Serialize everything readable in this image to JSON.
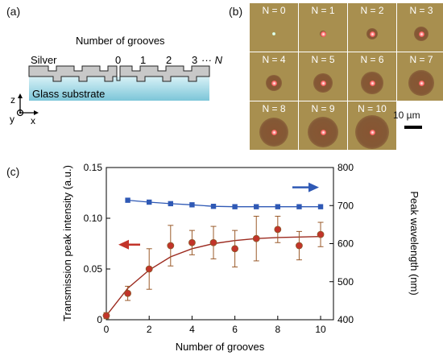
{
  "panel_a": {
    "label": "(a)",
    "title": "Number of grooves",
    "silver_label": "Silver",
    "glass_label": "Glass substrate",
    "groove_indices": [
      "0",
      "1",
      "2",
      "3"
    ],
    "ellipsis_n": "··· N",
    "axes": {
      "z": "z",
      "y": "y",
      "x": "x"
    },
    "colors": {
      "silver": "#c8c8c8",
      "glass": "#8fd0df"
    }
  },
  "panel_b": {
    "label": "(b)",
    "tiles": [
      {
        "label": "N = 0",
        "ring": 0.0
      },
      {
        "label": "N = 1",
        "ring": 0.05
      },
      {
        "label": "N = 2",
        "ring": 0.18
      },
      {
        "label": "N = 3",
        "ring": 0.28
      },
      {
        "label": "N = 4",
        "ring": 0.34
      },
      {
        "label": "N = 5",
        "ring": 0.4
      },
      {
        "label": "N = 6",
        "ring": 0.48
      },
      {
        "label": "N = 7",
        "ring": 0.58
      },
      {
        "label": "N = 8",
        "ring": 0.68
      },
      {
        "label": "N = 9",
        "ring": 0.74
      },
      {
        "label": "N = 10",
        "ring": 0.82
      }
    ],
    "scale_label": "10 µm",
    "colors": {
      "background": "#a88f4f"
    }
  },
  "panel_c": {
    "label": "(c)"
  },
  "chart_data": {
    "type": "scatter",
    "xlabel": "Number of grooves",
    "ylabel": "Transmission peak intensity (a.u.)",
    "y2label": "Peak wavelength (nm)",
    "xlim": [
      0,
      10.6
    ],
    "ylim": [
      0,
      0.15
    ],
    "y2lim": [
      400,
      800
    ],
    "x_ticks": [
      0,
      2,
      4,
      6,
      8,
      10
    ],
    "y_ticks": [
      "0",
      "0.05",
      "0.10",
      "0.15"
    ],
    "y2_ticks": [
      "400",
      "500",
      "600",
      "700",
      "800"
    ],
    "series": [
      {
        "axis": "left",
        "color": "#c2342a",
        "x": [
          0,
          1,
          2,
          3,
          4,
          5,
          6,
          7,
          8,
          9,
          10
        ],
        "y": [
          0.004,
          0.026,
          0.05,
          0.073,
          0.076,
          0.076,
          0.07,
          0.08,
          0.089,
          0.073,
          0.084
        ],
        "yerr": [
          0.003,
          0.007,
          0.02,
          0.02,
          0.012,
          0.016,
          0.018,
          0.022,
          0.013,
          0.014,
          0.012
        ]
      },
      {
        "axis": "left",
        "color": "#9c2a1f",
        "x": [
          0,
          1,
          2,
          3,
          4,
          5,
          6,
          7,
          8,
          9,
          10
        ],
        "y": [
          0.004,
          0.031,
          0.049,
          0.062,
          0.07,
          0.075,
          0.078,
          0.08,
          0.081,
          0.0815,
          0.082
        ]
      },
      {
        "axis": "right",
        "color": "#2f59b5",
        "x": [
          1,
          2,
          3,
          4,
          5,
          6,
          7,
          8,
          9,
          10
        ],
        "y": [
          714,
          709,
          705,
          702,
          698,
          697,
          697,
          697,
          697,
          697
        ]
      }
    ],
    "arrows": [
      {
        "axis": "left",
        "direction": "left",
        "color": "#c2342a"
      },
      {
        "axis": "right",
        "direction": "right",
        "color": "#2f59b5"
      }
    ]
  }
}
